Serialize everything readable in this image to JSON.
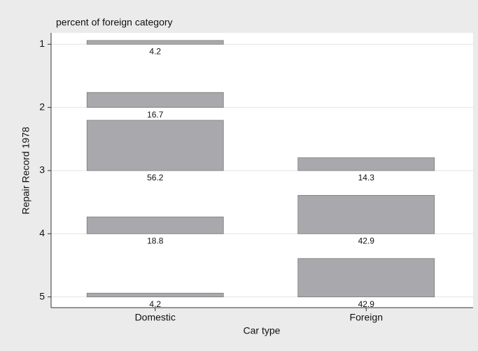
{
  "chart_data": {
    "type": "bar",
    "title": "percent of foreign category",
    "x_label": "Car type",
    "y_label": "Repair Record 1978",
    "categories": [
      "Domestic",
      "Foreign"
    ],
    "values": [
      [
        4.2,
        16.7,
        56.2,
        18.8,
        4.2
      ],
      [
        null,
        null,
        14.3,
        42.9,
        42.9
      ]
    ],
    "color": "#a9a9ad",
    "ylim": [
      5.17,
      0.82
    ],
    "yticks": [
      1,
      2,
      3,
      4,
      5
    ],
    "grid": true
  }
}
